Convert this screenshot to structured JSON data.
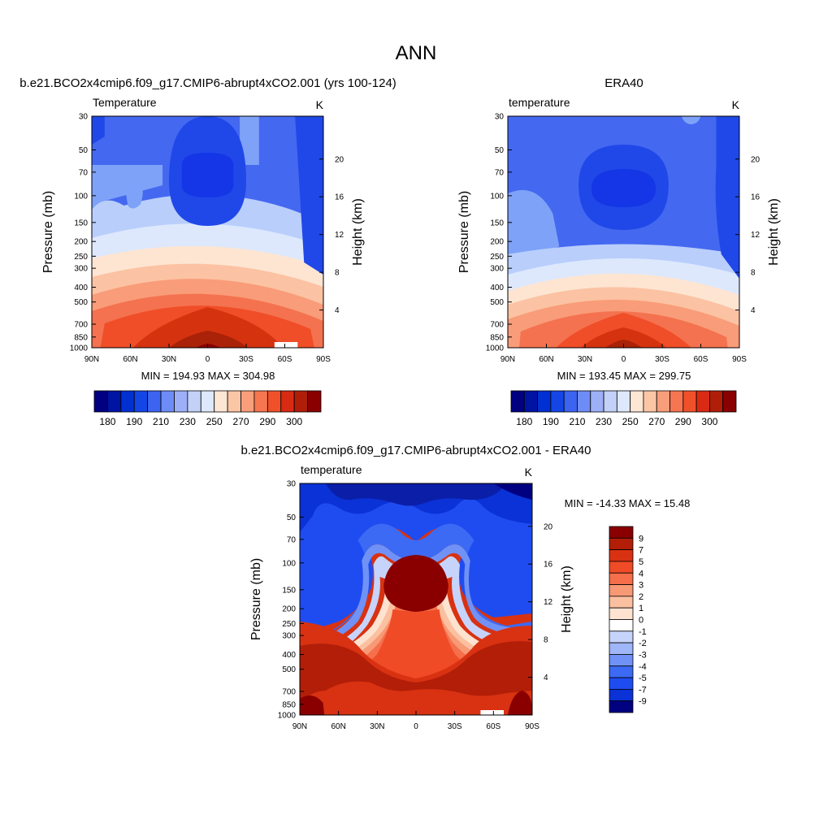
{
  "page": {
    "title": "ANN"
  },
  "colors": {
    "scale": [
      "#000080",
      "#0014a3",
      "#0030d1",
      "#1446e6",
      "#3c64f0",
      "#6e8cf5",
      "#9db0f7",
      "#c3d0f8",
      "#ffffff",
      "#fde6d4",
      "#fbc6a6",
      "#f89e7a",
      "#f57650",
      "#f0502a",
      "#d92a14",
      "#b01e0a",
      "#8a0000"
    ],
    "model_levels": [
      "#2048e8",
      "#4468f0",
      "#7ea2f8",
      "#b9cefb",
      "#dde8fd",
      "#fde5d2",
      "#fbc3a3",
      "#f99c79",
      "#f4724f",
      "#f04e28",
      "#d5320f",
      "#aa2208",
      "#8c0000"
    ],
    "diff_levels": [
      "#000080",
      "#0b1ea8",
      "#0a32d6",
      "#1f4cf0",
      "#3c6af4",
      "#7092f6",
      "#9fb6f8",
      "#c6d4fb",
      "#ffffff",
      "#fde3d0",
      "#fbc0a0",
      "#f89975",
      "#f56f4b",
      "#ef4b26",
      "#d83212",
      "#b21e08",
      "#8a0000"
    ]
  },
  "chart_data": [
    {
      "type": "heatmap",
      "name": "model",
      "title": "b.e21.BCO2x4cmip6.f09_g17.CMIP6-abrupt4xCO2.001 (yrs 100-124)",
      "left_label": "Temperature",
      "units": "K",
      "ylabel": "Pressure (mb)",
      "y2label": "Height (km)",
      "x_ticks": [
        "90N",
        "60N",
        "30N",
        "0",
        "30S",
        "60S",
        "90S"
      ],
      "x_range": [
        90,
        -90
      ],
      "y_ticks": [
        30,
        50,
        70,
        100,
        150,
        200,
        250,
        300,
        400,
        500,
        700,
        850,
        1000
      ],
      "y_range": [
        30,
        1000
      ],
      "y2_ticks": [
        4,
        8,
        12,
        16,
        20
      ],
      "stats": "MIN = 194.93  MAX = 304.98",
      "min": 194.93,
      "max": 304.98,
      "colorbar_ticks": [
        "180",
        "190",
        "210",
        "230",
        "250",
        "270",
        "290",
        "300"
      ]
    },
    {
      "type": "heatmap",
      "name": "obs",
      "title": "ERA40",
      "left_label": "temperature",
      "units": "K",
      "ylabel": "Pressure (mb)",
      "y2label": "Height (km)",
      "x_ticks": [
        "90N",
        "60N",
        "30N",
        "0",
        "30S",
        "60S",
        "90S"
      ],
      "x_range": [
        90,
        -90
      ],
      "y_ticks": [
        30,
        50,
        70,
        100,
        150,
        200,
        250,
        300,
        400,
        500,
        700,
        850,
        1000
      ],
      "y_range": [
        30,
        1000
      ],
      "y2_ticks": [
        4,
        8,
        12,
        16,
        20
      ],
      "stats": "MIN = 193.45  MAX = 299.75",
      "min": 193.45,
      "max": 299.75,
      "colorbar_ticks": [
        "180",
        "190",
        "210",
        "230",
        "250",
        "270",
        "290",
        "300"
      ]
    },
    {
      "type": "heatmap",
      "name": "difference",
      "title": "b.e21.BCO2x4cmip6.f09_g17.CMIP6-abrupt4xCO2.001 - ERA40",
      "left_label": "temperature",
      "units": "K",
      "ylabel": "Pressure (mb)",
      "y2label": "Height (km)",
      "x_ticks": [
        "90N",
        "60N",
        "30N",
        "0",
        "30S",
        "60S",
        "90S"
      ],
      "x_range": [
        90,
        -90
      ],
      "y_ticks": [
        30,
        50,
        70,
        100,
        150,
        200,
        250,
        300,
        400,
        500,
        700,
        850,
        1000
      ],
      "y_range": [
        30,
        1000
      ],
      "y2_ticks": [
        4,
        8,
        12,
        16,
        20
      ],
      "stats": "MIN = -14.33  MAX =  15.48",
      "min": -14.33,
      "max": 15.48,
      "colorbar_ticks": [
        "9",
        "7",
        "5",
        "4",
        "3",
        "2",
        "1",
        "0",
        "-1",
        "-2",
        "-3",
        "-4",
        "-5",
        "-7",
        "-9"
      ]
    }
  ]
}
